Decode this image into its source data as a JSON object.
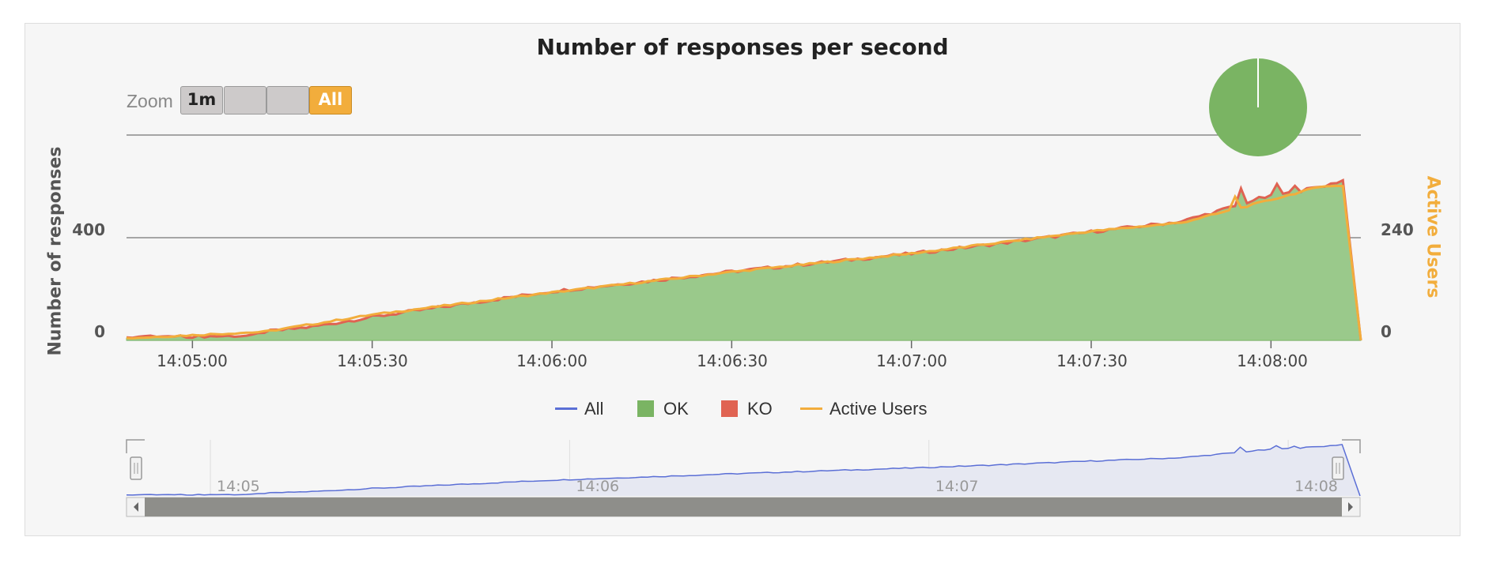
{
  "chart_data": {
    "type": "area",
    "title": "Number of responses per second",
    "zoom": {
      "label": "Zoom",
      "buttons": [
        "1m",
        "",
        "",
        "All"
      ],
      "selected": "All"
    },
    "y_left": {
      "label": "Number of responses",
      "ticks": [
        0,
        400
      ],
      "range": [
        0,
        800
      ]
    },
    "y_right": {
      "label": "Active Users",
      "ticks": [
        0,
        240
      ],
      "range": [
        0,
        480
      ]
    },
    "x_ticks": [
      "14:05:00",
      "14:05:30",
      "14:06:00",
      "14:06:30",
      "14:07:00",
      "14:07:30",
      "14:08:00"
    ],
    "x_range_seconds": [
      -11,
      195
    ],
    "legend": [
      "All",
      "OK",
      "KO",
      "Active Users"
    ],
    "colors": {
      "all": "#5b6fd6",
      "ok": "#7fbf6a",
      "ok_fill": "#9ac98b",
      "ko": "#e06352",
      "active": "#f2ad3c",
      "pie": "#7ab463"
    },
    "ok_anchors": [
      [
        -11,
        12
      ],
      [
        0,
        12
      ],
      [
        10,
        15
      ],
      [
        12,
        30
      ],
      [
        20,
        50
      ],
      [
        30,
        88
      ],
      [
        45,
        138
      ],
      [
        60,
        188
      ],
      [
        75,
        225
      ],
      [
        90,
        265
      ],
      [
        105,
        300
      ],
      [
        120,
        335
      ],
      [
        135,
        375
      ],
      [
        150,
        420
      ],
      [
        165,
        460
      ],
      [
        174,
        520
      ],
      [
        178,
        550
      ],
      [
        183,
        570
      ],
      [
        189,
        600
      ],
      [
        192,
        620
      ],
      [
        195,
        0
      ]
    ],
    "active_anchors": [
      [
        -11,
        5
      ],
      [
        12,
        20
      ],
      [
        30,
        60
      ],
      [
        60,
        112
      ],
      [
        90,
        160
      ],
      [
        120,
        203
      ],
      [
        150,
        255
      ],
      [
        165,
        275
      ],
      [
        175,
        310
      ],
      [
        189,
        362
      ],
      [
        192,
        360
      ],
      [
        195,
        0
      ]
    ],
    "spikes": [
      [
        175,
        60
      ],
      [
        181,
        45
      ],
      [
        184,
        30
      ]
    ],
    "navigator": {
      "ticks": [
        "14:05",
        "14:06",
        "14:07",
        "14:08"
      ]
    },
    "pie": {
      "slices": [
        {
          "name": "OK",
          "value": 99.9
        },
        {
          "name": "KO",
          "value": 0.1
        }
      ]
    }
  }
}
